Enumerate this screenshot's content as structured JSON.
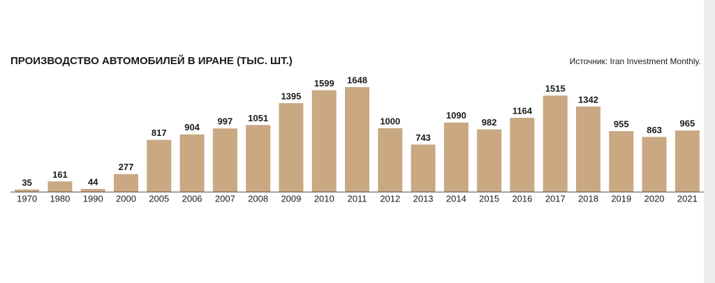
{
  "chart_data": {
    "type": "bar",
    "title": "ПРОИЗВОДСТВО АВТОМОБИЛЕЙ В ИРАНЕ (ТЫС. ШТ.)",
    "source": "Источник: Iran Investment Monthly.",
    "categories": [
      "1970",
      "1980",
      "1990",
      "2000",
      "2005",
      "2006",
      "2007",
      "2008",
      "2009",
      "2010",
      "2011",
      "2012",
      "2013",
      "2014",
      "2015",
      "2016",
      "2017",
      "2018",
      "2019",
      "2020",
      "2021"
    ],
    "values": [
      35,
      161,
      44,
      277,
      817,
      904,
      997,
      1051,
      1395,
      1599,
      1648,
      1000,
      743,
      1090,
      982,
      1164,
      1515,
      1342,
      955,
      863,
      965
    ],
    "color": "#c9a882"
  }
}
